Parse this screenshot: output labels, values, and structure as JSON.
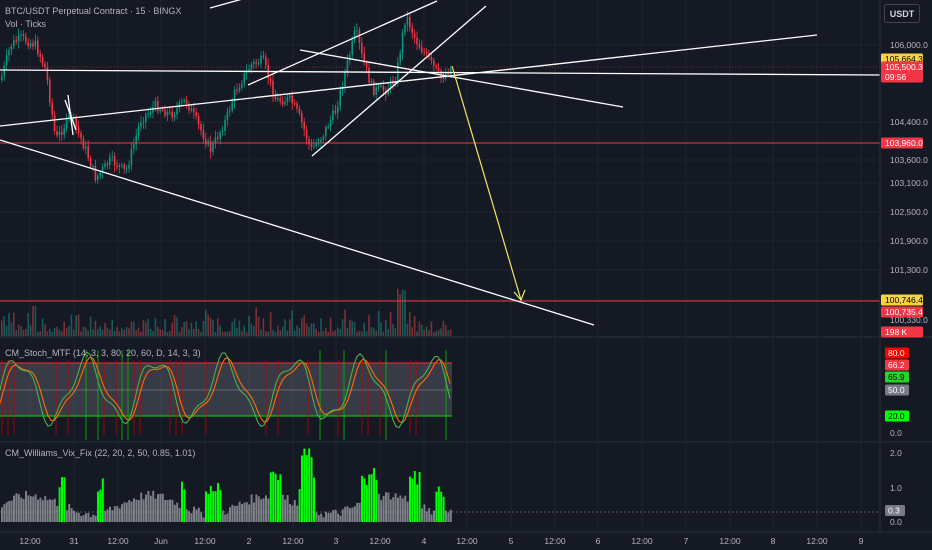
{
  "header": {
    "symbol_line": "BTC/USDT Perpetual Contract · 15 · BINGX",
    "volume_line": "Vol · Ticks",
    "currency_button": "USDT"
  },
  "indicators": {
    "stoch_label": "CM_Stoch_MTF (14, 3, 3, 80, 20, 60, D, 14, 3, 3)",
    "vix_label": "CM_Williams_Vix_Fix (22, 20, 2, 50, 0.85, 1.01)"
  },
  "price_axis": {
    "ticks": [
      "106,000.0",
      "104,400.0",
      "103,600.0",
      "103,100.0",
      "102,500.0",
      "101,900.0",
      "101,300.0",
      "100,330.0"
    ],
    "markers": [
      {
        "name": "high-line-price",
        "label": "105,664.3",
        "color": "#f5d343",
        "text_color": "#000000"
      },
      {
        "name": "current-price",
        "label": "105,500.3",
        "color": "#f23645",
        "text_color": "#ffffff"
      },
      {
        "name": "countdown",
        "label": "09:56",
        "color": "#f23645",
        "text_color": "#ffffff"
      },
      {
        "name": "support-level",
        "label": "103,960.0",
        "color": "#f23645",
        "text_color": "#ffffff"
      },
      {
        "name": "target-price",
        "label": "100,746.4",
        "color": "#f5d343",
        "text_color": "#000000"
      },
      {
        "name": "low-level",
        "label": "100,735.4",
        "color": "#f23645",
        "text_color": "#ffffff"
      },
      {
        "name": "volume-value",
        "label": "198 K",
        "color": "#f23645",
        "text_color": "#ffffff"
      }
    ]
  },
  "stoch_axis": {
    "ticks": [
      "80.0",
      "50.0",
      "20.0",
      "0.0"
    ],
    "markers": [
      {
        "label": "80.0",
        "color": "#ff0000",
        "text_color": "#ffffff"
      },
      {
        "label": "66.2",
        "color": "#f23645",
        "text_color": "#ffffff"
      },
      {
        "label": "65.9",
        "color": "#26d626",
        "text_color": "#000000"
      },
      {
        "label": "50.0",
        "color": "#787b86",
        "text_color": "#ffffff"
      },
      {
        "label": "20.0",
        "color": "#00ff00",
        "text_color": "#000000"
      }
    ]
  },
  "vix_axis": {
    "ticks": [
      "2.0",
      "1.0",
      "0.0"
    ],
    "markers": [
      {
        "label": "0.3",
        "color": "#787b86",
        "text_color": "#ffffff"
      }
    ]
  },
  "time_axis": [
    "12:00",
    "31",
    "12:00",
    "Jun",
    "12:00",
    "2",
    "12:00",
    "3",
    "12:00",
    "4",
    "12:00",
    "5",
    "12:00",
    "6",
    "12:00",
    "7",
    "12:00",
    "8",
    "12:00",
    "9"
  ],
  "colors": {
    "background": "#151924",
    "up_candle": "#089981",
    "down_candle": "#f23645",
    "trend_lines": "#ffffff",
    "arrow": "#f5e663",
    "level_line": "#f23645"
  }
}
